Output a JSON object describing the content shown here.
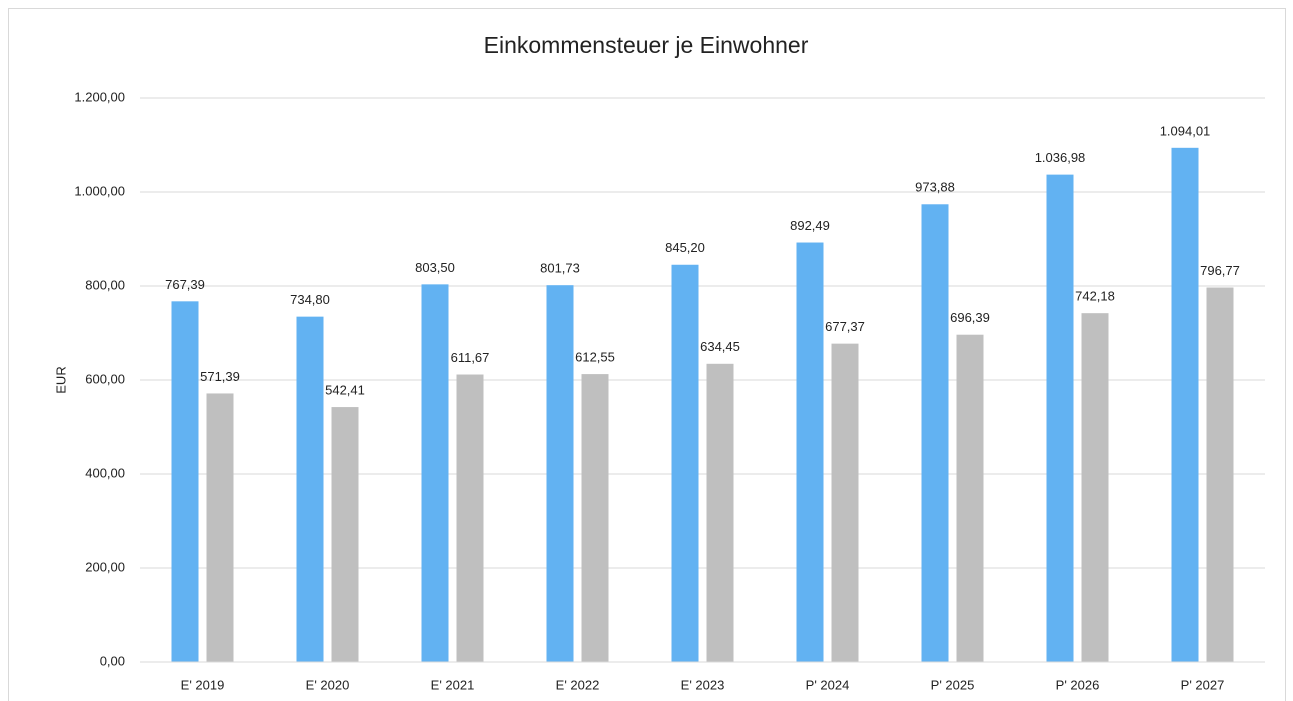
{
  "chart_data": {
    "type": "bar",
    "title": "Einkommensteuer je Einwohner",
    "ylabel": "EUR",
    "categories": [
      "E' 2019",
      "E' 2020",
      "E' 2021",
      "E' 2022",
      "E' 2023",
      "P' 2024",
      "P' 2025",
      "P' 2026",
      "P' 2027"
    ],
    "series": [
      {
        "color": "#62b2f2",
        "values": [
          767.39,
          734.8,
          803.5,
          801.73,
          845.2,
          892.49,
          973.88,
          1036.98,
          1094.01
        ],
        "value_labels": [
          "767,39",
          "734,80",
          "803,50",
          "801,73",
          "845,20",
          "892,49",
          "973,88",
          "1.036,98",
          "1.094,01"
        ]
      },
      {
        "color": "#bfbfbf",
        "values": [
          571.39,
          542.41,
          611.67,
          612.55,
          634.45,
          677.37,
          696.39,
          742.18,
          796.77
        ],
        "value_labels": [
          "571,39",
          "542,41",
          "611,67",
          "612,55",
          "634,45",
          "677,37",
          "696,39",
          "742,18",
          "796,77"
        ]
      }
    ],
    "ylim": [
      0,
      1200
    ],
    "yticks": [
      {
        "value": 0,
        "label": "0,00"
      },
      {
        "value": 200,
        "label": "200,00"
      },
      {
        "value": 400,
        "label": "400,00"
      },
      {
        "value": 600,
        "label": "600,00"
      },
      {
        "value": 800,
        "label": "800,00"
      },
      {
        "value": 1000,
        "label": "1.000,00"
      },
      {
        "value": 1200,
        "label": "1.200,00"
      }
    ],
    "grid": true
  }
}
